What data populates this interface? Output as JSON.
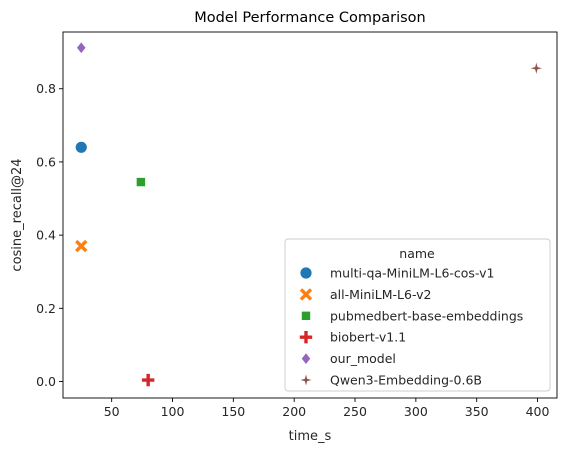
{
  "chart_data": {
    "type": "scatter",
    "title": "Model Performance Comparison",
    "xlabel": "time_s",
    "ylabel": "cosine_recall@24",
    "xlim": [
      10,
      416
    ],
    "ylim": [
      -0.045,
      0.955
    ],
    "xticks": [
      50,
      100,
      150,
      200,
      250,
      300,
      350,
      400
    ],
    "yticks": [
      0.0,
      0.2,
      0.4,
      0.6,
      0.8
    ],
    "xtick_labels": [
      "50",
      "100",
      "150",
      "200",
      "250",
      "300",
      "350",
      "400"
    ],
    "ytick_labels": [
      "0.0",
      "0.2",
      "0.4",
      "0.6",
      "0.8"
    ],
    "grid": false,
    "legend": {
      "title": "name",
      "placement": "lower-right"
    },
    "series": [
      {
        "name": "multi-qa-MiniLM-L6-cos-v1",
        "marker": "circle",
        "color": "#1f77b4",
        "x": [
          25
        ],
        "y": [
          0.64
        ]
      },
      {
        "name": "all-MiniLM-L6-v2",
        "marker": "x",
        "color": "#ff7f0e",
        "x": [
          25
        ],
        "y": [
          0.37
        ]
      },
      {
        "name": "pubmedbert-base-embeddings",
        "marker": "square",
        "color": "#2ca02c",
        "x": [
          74
        ],
        "y": [
          0.545
        ]
      },
      {
        "name": "biobert-v1.1",
        "marker": "plus",
        "color": "#d62728",
        "x": [
          80
        ],
        "y": [
          0.004
        ]
      },
      {
        "name": "our_model",
        "marker": "diamond",
        "color": "#9467bd",
        "x": [
          25
        ],
        "y": [
          0.912
        ]
      },
      {
        "name": "Qwen3-Embedding-0.6B",
        "marker": "star",
        "color": "#8c564b",
        "x": [
          399
        ],
        "y": [
          0.856
        ]
      }
    ]
  }
}
